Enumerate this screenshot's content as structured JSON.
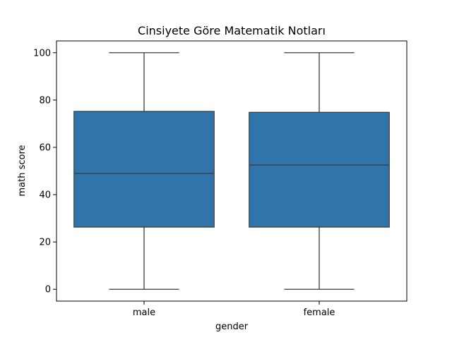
{
  "chart_data": {
    "type": "box",
    "title": "Cinsiyete Göre Matematik Notları",
    "xlabel": "gender",
    "ylabel": "math score",
    "categories": [
      "male",
      "female"
    ],
    "boxes": [
      {
        "category": "male",
        "min": 0,
        "q1": 26.3,
        "median": 49,
        "q3": 75.2,
        "max": 100
      },
      {
        "category": "female",
        "min": 0,
        "q1": 26.3,
        "median": 52.5,
        "q3": 74.8,
        "max": 100
      }
    ],
    "ylim": [
      -5,
      105
    ],
    "yticks": [
      0,
      20,
      40,
      60,
      80,
      100
    ],
    "grid": false,
    "box_color": "#2f74aa",
    "line_color": "#3d3d3d"
  }
}
